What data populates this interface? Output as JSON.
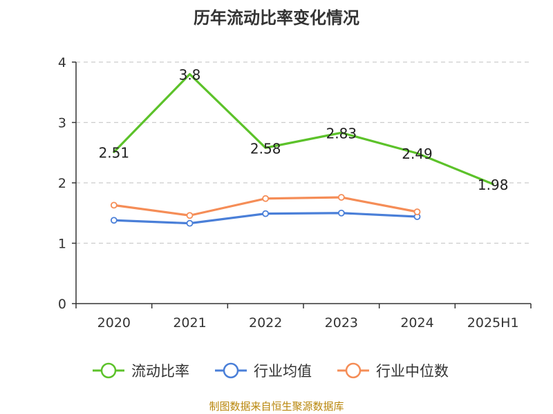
{
  "chart_data": {
    "type": "line",
    "title": "历年流动比率变化情况",
    "categories": [
      "2020",
      "2021",
      "2022",
      "2023",
      "2024",
      "2025H1"
    ],
    "ylim": [
      0,
      4
    ],
    "yticks": [
      0,
      1,
      2,
      3,
      4
    ],
    "grid": true,
    "legend_position": "bottom",
    "series": [
      {
        "name": "流动比率",
        "color": "#5cc22a",
        "values": [
          2.51,
          3.8,
          2.58,
          2.83,
          2.49,
          1.98
        ],
        "labels": [
          "2.51",
          "3.8",
          "2.58",
          "2.83",
          "2.49",
          "1.98"
        ],
        "show_markers": false
      },
      {
        "name": "行业均值",
        "color": "#4a7fd8",
        "values": [
          1.38,
          1.33,
          1.49,
          1.5,
          1.44,
          null
        ],
        "show_markers": true
      },
      {
        "name": "行业中位数",
        "color": "#f58d57",
        "values": [
          1.63,
          1.46,
          1.74,
          1.76,
          1.52,
          null
        ],
        "show_markers": true
      }
    ]
  },
  "footer": {
    "source": "制图数据来自恒生聚源数据库"
  }
}
